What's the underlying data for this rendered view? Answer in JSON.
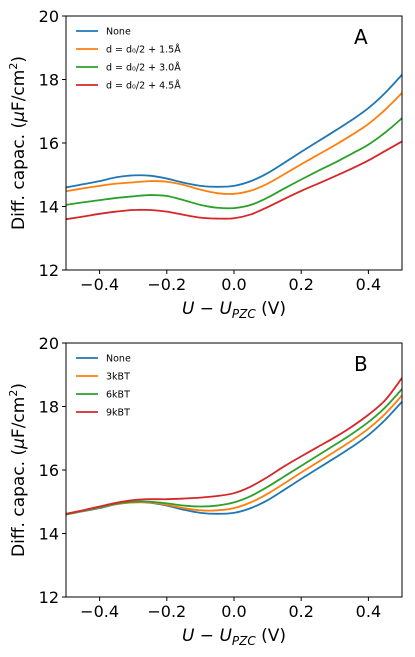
{
  "chart_data": [
    {
      "type": "line",
      "panel_label": "A",
      "xlabel": "U − U_PZC (V)",
      "xlabel_main": "U − U",
      "xlabel_sub": "PZC",
      "xlabel_unit": " (V)",
      "ylabel": "Diff. capac. (μF/cm²)",
      "xlim": [
        -0.5,
        0.5
      ],
      "ylim": [
        12,
        20
      ],
      "xticks": [
        -0.4,
        -0.2,
        0.0,
        0.2,
        0.4
      ],
      "xtick_labels": [
        "−0.4",
        "−0.2",
        "0.0",
        "0.2",
        "0.4"
      ],
      "yticks": [
        12,
        14,
        16,
        18,
        20
      ],
      "ytick_labels": [
        "12",
        "14",
        "16",
        "18",
        "20"
      ],
      "grid": false,
      "legend_position": "top-left",
      "x": [
        -0.5,
        -0.45,
        -0.4,
        -0.35,
        -0.3,
        -0.25,
        -0.2,
        -0.15,
        -0.1,
        -0.05,
        0.0,
        0.05,
        0.1,
        0.15,
        0.2,
        0.25,
        0.3,
        0.35,
        0.4,
        0.45,
        0.5
      ],
      "series": [
        {
          "name": "None",
          "color": "#1f77b4",
          "values": [
            14.6,
            14.7,
            14.8,
            14.92,
            14.98,
            14.97,
            14.88,
            14.75,
            14.65,
            14.62,
            14.65,
            14.8,
            15.05,
            15.38,
            15.72,
            16.05,
            16.38,
            16.72,
            17.1,
            17.58,
            18.15
          ]
        },
        {
          "name": "d = d0/2 + 1.5Å",
          "color": "#ff7f0e",
          "values": [
            14.48,
            14.57,
            14.65,
            14.72,
            14.76,
            14.8,
            14.78,
            14.68,
            14.53,
            14.42,
            14.4,
            14.5,
            14.72,
            15.02,
            15.33,
            15.63,
            15.93,
            16.25,
            16.6,
            17.05,
            17.58
          ]
        },
        {
          "name": "d = d0/2 + 3.0Å",
          "color": "#2ca02c",
          "values": [
            14.05,
            14.13,
            14.2,
            14.27,
            14.32,
            14.36,
            14.33,
            14.2,
            14.05,
            13.96,
            13.95,
            14.05,
            14.28,
            14.57,
            14.85,
            15.12,
            15.38,
            15.66,
            15.95,
            16.33,
            16.78
          ]
        },
        {
          "name": "d = d0/2 + 4.5Å",
          "color": "#d62728",
          "values": [
            13.6,
            13.68,
            13.77,
            13.84,
            13.89,
            13.89,
            13.84,
            13.74,
            13.65,
            13.62,
            13.63,
            13.75,
            13.98,
            14.24,
            14.49,
            14.72,
            14.95,
            15.19,
            15.45,
            15.75,
            16.05
          ]
        }
      ],
      "legend_entries": [
        {
          "label": "None"
        },
        {
          "label": "d = d₀/2 + 1.5Å"
        },
        {
          "label": "d = d₀/2 + 3.0Å"
        },
        {
          "label": "d = d₀/2 + 4.5Å"
        }
      ]
    },
    {
      "type": "line",
      "panel_label": "B",
      "xlabel": "U − U_PZC (V)",
      "xlabel_main": "U − U",
      "xlabel_sub": "PZC",
      "xlabel_unit": " (V)",
      "ylabel": "Diff. capac. (μF/cm²)",
      "xlim": [
        -0.5,
        0.5
      ],
      "ylim": [
        12,
        20
      ],
      "xticks": [
        -0.4,
        -0.2,
        0.0,
        0.2,
        0.4
      ],
      "xtick_labels": [
        "−0.4",
        "−0.2",
        "0.0",
        "0.2",
        "0.4"
      ],
      "yticks": [
        12,
        14,
        16,
        18,
        20
      ],
      "ytick_labels": [
        "12",
        "14",
        "16",
        "18",
        "20"
      ],
      "grid": false,
      "legend_position": "top-left",
      "x": [
        -0.5,
        -0.45,
        -0.4,
        -0.35,
        -0.3,
        -0.25,
        -0.2,
        -0.15,
        -0.1,
        -0.05,
        0.0,
        0.05,
        0.1,
        0.15,
        0.2,
        0.25,
        0.3,
        0.35,
        0.4,
        0.45,
        0.5
      ],
      "series": [
        {
          "name": "None",
          "color": "#1f77b4",
          "values": [
            14.6,
            14.7,
            14.8,
            14.92,
            14.98,
            14.97,
            14.88,
            14.75,
            14.65,
            14.62,
            14.65,
            14.8,
            15.05,
            15.38,
            15.72,
            16.05,
            16.38,
            16.72,
            17.1,
            17.58,
            18.15
          ]
        },
        {
          "name": "3kBT",
          "color": "#ff7f0e",
          "values": [
            14.6,
            14.71,
            14.82,
            14.93,
            14.98,
            14.98,
            14.9,
            14.8,
            14.73,
            14.73,
            14.8,
            14.98,
            15.25,
            15.58,
            15.92,
            16.25,
            16.58,
            16.92,
            17.3,
            17.77,
            18.35
          ]
        },
        {
          "name": "6kBT",
          "color": "#2ca02c",
          "values": [
            14.6,
            14.72,
            14.83,
            14.94,
            15.0,
            15.0,
            14.95,
            14.88,
            14.85,
            14.88,
            14.98,
            15.18,
            15.47,
            15.8,
            16.13,
            16.46,
            16.79,
            17.13,
            17.51,
            17.97,
            18.55
          ]
        },
        {
          "name": "9kBT",
          "color": "#d62728",
          "values": [
            14.62,
            14.73,
            14.85,
            14.97,
            15.05,
            15.08,
            15.08,
            15.1,
            15.13,
            15.18,
            15.27,
            15.48,
            15.78,
            16.12,
            16.43,
            16.73,
            17.03,
            17.36,
            17.74,
            18.2,
            18.9
          ]
        }
      ],
      "legend_entries": [
        {
          "label": "None"
        },
        {
          "label": "3kBT"
        },
        {
          "label": "6kBT"
        },
        {
          "label": "9kBT"
        }
      ]
    }
  ]
}
